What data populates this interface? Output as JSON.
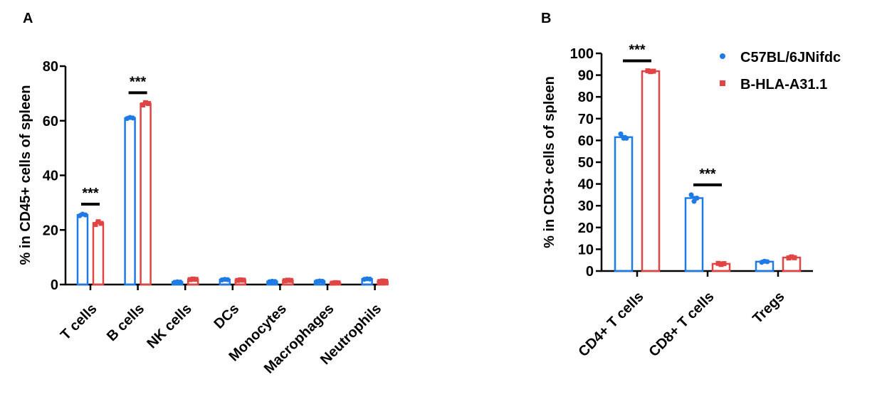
{
  "colors": {
    "blue": "#1e7be6",
    "red": "#e04444",
    "axis": "#000000"
  },
  "legend": [
    {
      "label": "C57BL/6JNifdc",
      "marker": "circle",
      "color": "#1e7be6"
    },
    {
      "label": "B-HLA-A31.1",
      "marker": "square",
      "color": "#e04444"
    }
  ],
  "chart_data": [
    {
      "panel_label": "A",
      "type": "bar",
      "ylabel": "% in CD45+ cells of spleen",
      "ylim": [
        0,
        80
      ],
      "yticks": [
        0,
        20,
        40,
        60,
        80
      ],
      "categories": [
        "T cells",
        "B cells",
        "NK cells",
        "DCs",
        "Monocytes",
        "Macrophages",
        "Neutrophils"
      ],
      "series": [
        {
          "name": "C57BL/6JNifdc",
          "values": [
            25.5,
            61.0,
            0.9,
            1.8,
            1.1,
            1.2,
            2.0
          ],
          "points": [
            [
              25.2,
              25.8,
              25.5
            ],
            [
              60.8,
              61.2,
              61.0
            ],
            [
              0.8,
              1.0,
              0.9
            ],
            [
              1.7,
              1.9,
              1.8
            ],
            [
              1.0,
              1.2,
              1.1
            ],
            [
              1.1,
              1.3,
              1.2
            ],
            [
              1.9,
              2.1,
              2.0
            ]
          ]
        },
        {
          "name": "B-HLA-A31.1",
          "values": [
            22.5,
            66.2,
            1.9,
            1.6,
            1.5,
            0.6,
            1.2
          ],
          "points": [
            [
              22.0,
              23.0,
              22.4
            ],
            [
              65.8,
              66.6,
              66.3
            ],
            [
              1.8,
              2.0,
              1.9
            ],
            [
              1.5,
              1.7,
              1.6
            ],
            [
              1.4,
              1.6,
              1.5
            ],
            [
              0.5,
              0.7,
              0.6
            ],
            [
              1.1,
              1.3,
              1.2
            ]
          ]
        }
      ],
      "significance": [
        {
          "category": "T cells",
          "label": "***"
        },
        {
          "category": "B cells",
          "label": "***"
        }
      ]
    },
    {
      "panel_label": "B",
      "type": "bar",
      "ylabel": "% in CD3+ cells of spleen",
      "ylim": [
        0,
        100
      ],
      "yticks": [
        0,
        10,
        20,
        30,
        40,
        50,
        60,
        70,
        80,
        90,
        100
      ],
      "categories": [
        "CD4+ T cells",
        "CD8+ T cells",
        "Tregs"
      ],
      "series": [
        {
          "name": "C57BL/6JNifdc",
          "values": [
            61.5,
            33.5,
            4.3
          ],
          "points": [
            [
              63.0,
              61.0,
              61.0
            ],
            [
              35.0,
              32.0,
              33.5
            ],
            [
              4.0,
              4.5,
              4.3
            ]
          ]
        },
        {
          "name": "B-HLA-A31.1",
          "values": [
            91.8,
            3.3,
            6.2
          ],
          "points": [
            [
              92.0,
              91.6,
              91.8
            ],
            [
              3.5,
              3.0,
              3.4
            ],
            [
              6.0,
              6.5,
              6.1
            ]
          ]
        }
      ],
      "significance": [
        {
          "category": "CD4+ T cells",
          "label": "***"
        },
        {
          "category": "CD8+ T cells",
          "label": "***"
        }
      ]
    }
  ]
}
